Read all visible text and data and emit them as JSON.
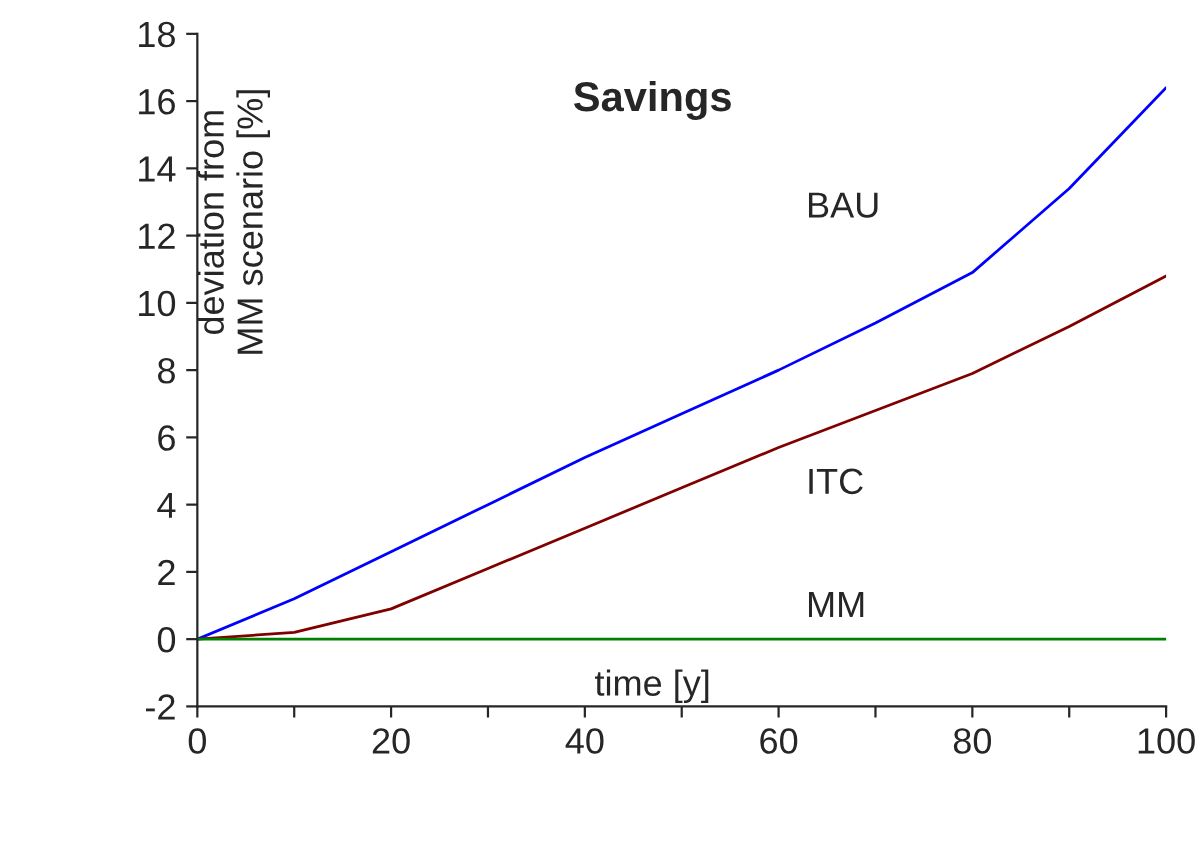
{
  "chart_data": {
    "type": "line",
    "title": "Savings",
    "xlabel": "time [y]",
    "ylabel": "deviation from\nMM scenario [%]",
    "x": [
      0,
      10,
      20,
      30,
      40,
      50,
      60,
      70,
      80,
      90,
      100
    ],
    "series": [
      {
        "name": "BAU",
        "color": "#0000ff",
        "values": [
          0,
          1.2,
          2.6,
          4.0,
          5.4,
          6.7,
          8.0,
          9.4,
          10.9,
          13.4,
          16.4
        ]
      },
      {
        "name": "ITC",
        "color": "#800000",
        "values": [
          0,
          0.2,
          0.9,
          2.1,
          3.3,
          4.5,
          5.7,
          6.8,
          7.9,
          9.3,
          10.8
        ]
      },
      {
        "name": "MM",
        "color": "#008000",
        "values": [
          0,
          0,
          0,
          0,
          0,
          0,
          0,
          0,
          0,
          0,
          0
        ]
      }
    ],
    "xlim": [
      0,
      100
    ],
    "ylim": [
      -2,
      18
    ],
    "xticks": [
      0,
      {
        "value": 10,
        "label": null
      },
      20,
      {
        "value": 30,
        "label": null
      },
      40,
      {
        "value": 50,
        "label": null
      },
      60,
      {
        "value": 70,
        "label": null
      },
      80,
      {
        "value": 90,
        "label": null
      },
      100
    ],
    "yticks": [
      -2,
      0,
      2,
      4,
      6,
      8,
      10,
      12,
      14,
      16,
      18
    ],
    "grid": false,
    "legend": false,
    "marker": "none",
    "line_style": "solid"
  }
}
